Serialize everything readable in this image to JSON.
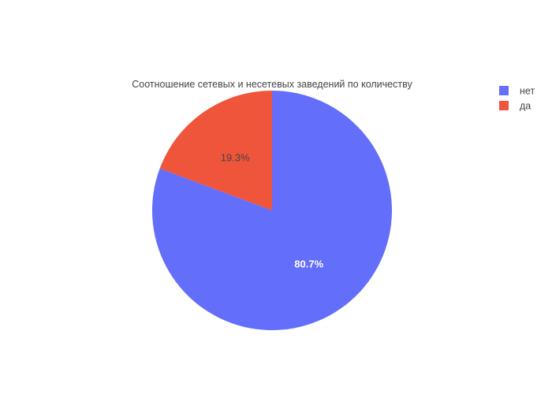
{
  "chart_data": {
    "type": "pie",
    "title": "Соотношение сетевых и несетевых заведений по количеству",
    "legend_position": "top-right",
    "slices": [
      {
        "label": "нет",
        "value": 80.7,
        "display": "80.7%",
        "color": "#636efa",
        "text_color": "#ffffff"
      },
      {
        "label": "да",
        "value": 19.3,
        "display": "19.3%",
        "color": "#ef553b",
        "text_color": "#444444"
      }
    ]
  }
}
